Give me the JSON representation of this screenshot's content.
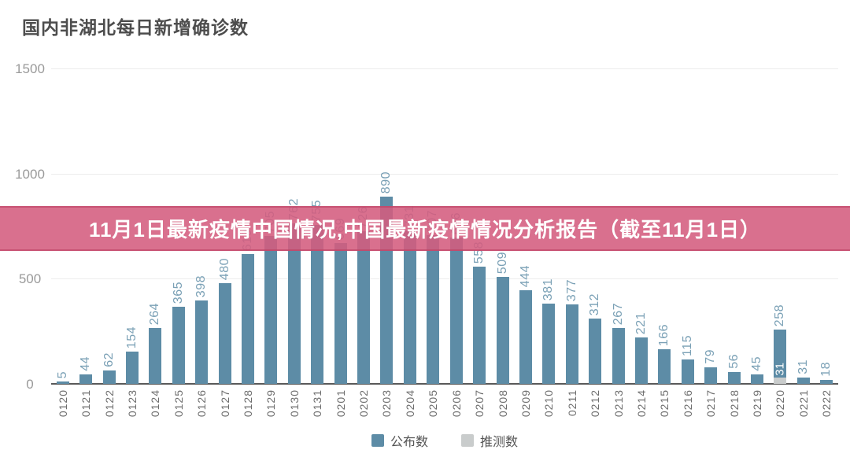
{
  "title": "国内非湖北每日新增确诊数",
  "banner": {
    "text": "11月1日最新疫情中国情况,中国最新疫情情况分析报告（截至11月1日）",
    "bg_color": "#d45c7e",
    "text_color": "#ffffff"
  },
  "chart_data": {
    "type": "bar",
    "title": "国内非湖北每日新增确诊数",
    "xlabel": "",
    "ylabel": "",
    "ylim": [
      0,
      1500
    ],
    "y_ticks": [
      "1500",
      "1000",
      "500",
      "0"
    ],
    "grid": true,
    "legend_position": "bottom-center",
    "categories": [
      "0120",
      "0121",
      "0122",
      "0123",
      "0124",
      "0125",
      "0126",
      "0127",
      "0128",
      "0129",
      "0130",
      "0131",
      "0201",
      "0202",
      "0203",
      "0204",
      "0205",
      "0206",
      "0207",
      "0208",
      "0209",
      "0210",
      "0211",
      "0212",
      "0213",
      "0214",
      "0215",
      "0216",
      "0217",
      "0218",
      "0219",
      "0220",
      "0221",
      "0222"
    ],
    "series": [
      {
        "name": "公布数",
        "color": "#5d8ca6",
        "values": [
          5,
          44,
          62,
          154,
          264,
          365,
          398,
          480,
          619,
          705,
          762,
          755,
          669,
          726,
          890,
          731,
          707,
          696,
          558,
          509,
          444,
          381,
          377,
          312,
          267,
          221,
          166,
          115,
          79,
          56,
          45,
          258,
          31,
          18
        ]
      },
      {
        "name": "推测数",
        "color": "#c9cccc",
        "values": [
          null,
          null,
          null,
          null,
          null,
          null,
          null,
          null,
          null,
          null,
          null,
          null,
          null,
          null,
          null,
          null,
          null,
          null,
          null,
          null,
          null,
          null,
          null,
          null,
          null,
          null,
          null,
          null,
          null,
          null,
          null,
          31,
          null,
          null
        ]
      }
    ],
    "annotations": [
      {
        "category": "0220",
        "inner_label": "31",
        "outer_label": "258"
      }
    ]
  },
  "legend": {
    "items": [
      {
        "label": "公布数",
        "color": "#5d8ca6"
      },
      {
        "label": "推测数",
        "color": "#c9cccc"
      }
    ]
  }
}
